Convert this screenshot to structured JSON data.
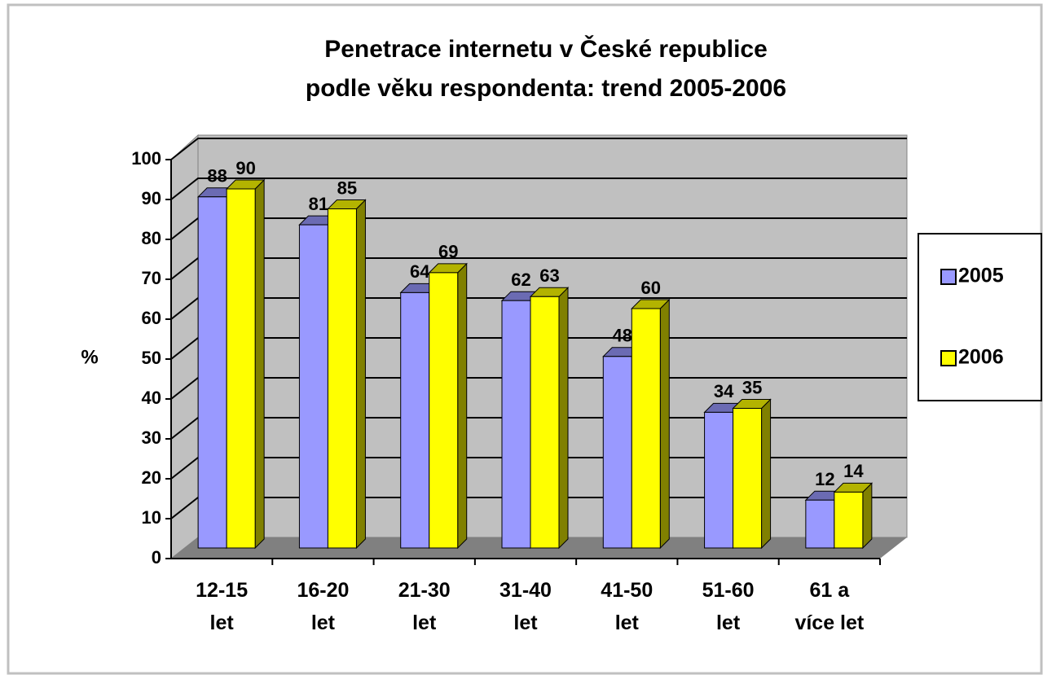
{
  "chart_data": {
    "type": "bar3d",
    "title": [
      "Penetrace internetu v České republice",
      "podle věku respondenta: trend 2005-2006"
    ],
    "y_label": "%",
    "categories": [
      "12-15\nlet",
      "16-20\nlet",
      "21-30\nlet",
      "31-40\nlet",
      "41-50\nlet",
      "51-60\nlet",
      "61 a\nvíce let"
    ],
    "series": [
      {
        "name": "2005",
        "color": "#9999ff",
        "values": [
          88,
          81,
          64,
          62,
          48,
          34,
          12
        ]
      },
      {
        "name": "2006",
        "color": "#ffff00",
        "values": [
          90,
          85,
          69,
          63,
          60,
          35,
          14
        ]
      }
    ],
    "ylim": [
      0,
      100
    ],
    "yticks": [
      0,
      10,
      20,
      30,
      40,
      50,
      60,
      70,
      80,
      90,
      100
    ],
    "grid": true,
    "legend": "right"
  }
}
